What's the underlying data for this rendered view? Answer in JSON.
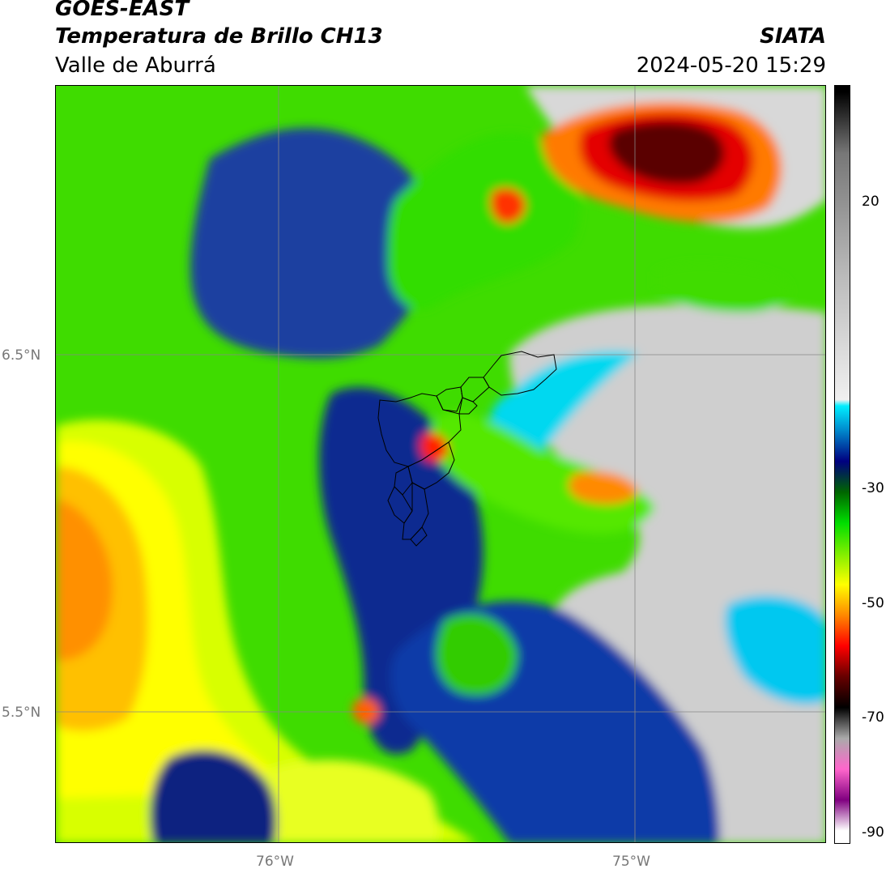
{
  "header": {
    "title_line1": "GOES-EAST",
    "title_line2": "Temperatura de Brillo CH13",
    "subtitle": "Valle de Aburrá",
    "organization": "SIATA",
    "datetime": "2024-05-20 15:29"
  },
  "map": {
    "lat_labels": [
      "6.5°N",
      "5.5°N"
    ],
    "lon_labels": [
      "76°W",
      "75°W"
    ],
    "colors": {
      "warm_orange": "#ffa500",
      "yellow": "#ffff00",
      "green": "#33dd00",
      "dark_blue": "#0a1a80",
      "cyan": "#00e5ff",
      "grey_cloud": "#cfcfcf",
      "red": "#e00000",
      "dark_red": "#4a0000",
      "boundary": "#000000"
    }
  },
  "colorbar": {
    "tick_labels": [
      "20",
      "-30",
      "-50",
      "-70",
      "-90"
    ],
    "stops": [
      {
        "value": -90,
        "color": "#ffffff"
      },
      {
        "value": -85,
        "color": "#800080"
      },
      {
        "value": -80,
        "color": "#ff66cc"
      },
      {
        "value": -75,
        "color": "#aaaaaa"
      },
      {
        "value": -70,
        "color": "#000000"
      },
      {
        "value": -65,
        "color": "#660000"
      },
      {
        "value": -60,
        "color": "#ff0000"
      },
      {
        "value": -55,
        "color": "#ff8800"
      },
      {
        "value": -50,
        "color": "#ffff00"
      },
      {
        "value": -40,
        "color": "#00dd00"
      },
      {
        "value": -35,
        "color": "#006600"
      },
      {
        "value": -30,
        "color": "#000080"
      },
      {
        "value": -25,
        "color": "#0088cc"
      },
      {
        "value": -21,
        "color": "#00eeff"
      },
      {
        "value": -20,
        "color": "#f0f0f0"
      },
      {
        "value": 0,
        "color": "#bbbbbb"
      },
      {
        "value": 20,
        "color": "#777777"
      },
      {
        "value": 30,
        "color": "#000000"
      }
    ]
  }
}
